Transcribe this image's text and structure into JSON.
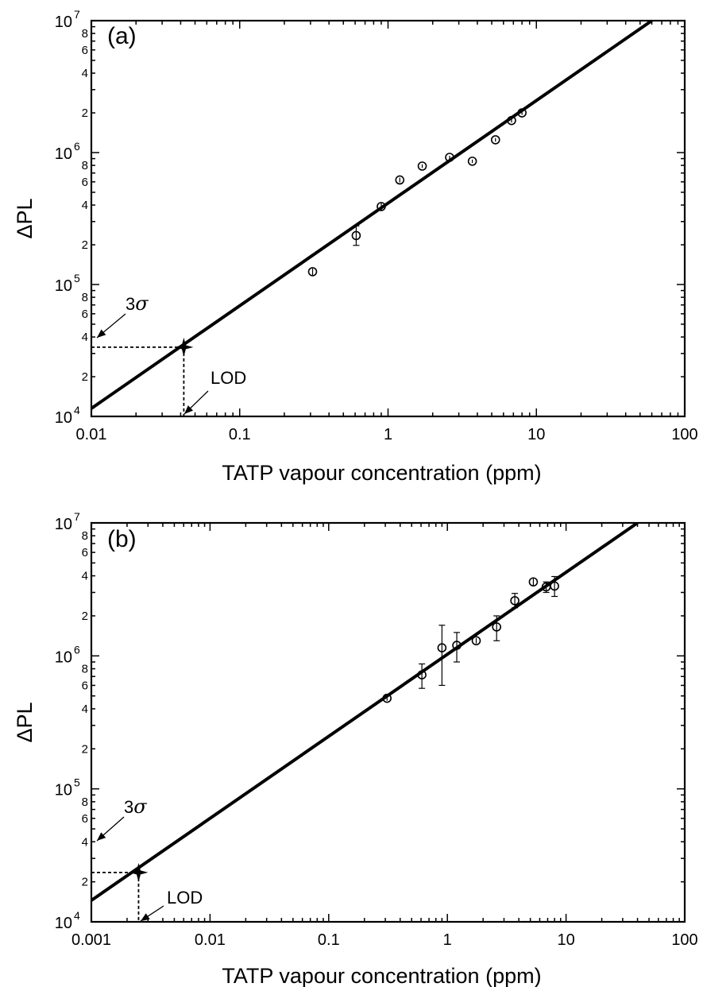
{
  "chart_data": [
    {
      "type": "scatter",
      "panel_label": "(a)",
      "xlabel": "TATP vapour concentration (ppm)",
      "ylabel": "ΔPL",
      "x_scale": "log",
      "y_scale": "log",
      "xlim": [
        0.01,
        100
      ],
      "ylim": [
        10000,
        10000000
      ],
      "x_ticks": [
        {
          "value": 0.01,
          "label": "0.01"
        },
        {
          "value": 0.1,
          "label": "0.1"
        },
        {
          "value": 1,
          "label": "1"
        },
        {
          "value": 10,
          "label": "10"
        },
        {
          "value": 100,
          "label": "100"
        }
      ],
      "y_major_ticks": [
        {
          "value": 10000,
          "base": "10",
          "exp": "4"
        },
        {
          "value": 100000,
          "base": "10",
          "exp": "5"
        },
        {
          "value": 1000000,
          "base": "10",
          "exp": "6"
        },
        {
          "value": 10000000,
          "base": "10",
          "exp": "7"
        }
      ],
      "y_minor_labels": [
        "2",
        "4",
        "6",
        "8"
      ],
      "grid": false,
      "series": [
        {
          "kind": "points_with_error_bars",
          "marker": "open circle",
          "points": [
            {
              "x": 0.31,
              "y": 125000,
              "err_low": 118000,
              "err_high": 132000
            },
            {
              "x": 0.61,
              "y": 235000,
              "err_low": 198000,
              "err_high": 278000
            },
            {
              "x": 0.9,
              "y": 390000,
              "err_low": 360000,
              "err_high": 420000
            },
            {
              "x": 1.2,
              "y": 620000,
              "err_low": 595000,
              "err_high": 645000
            },
            {
              "x": 1.7,
              "y": 790000,
              "err_low": 765000,
              "err_high": 815000
            },
            {
              "x": 2.6,
              "y": 920000,
              "err_low": 895000,
              "err_high": 945000
            },
            {
              "x": 3.7,
              "y": 860000,
              "err_low": 835000,
              "err_high": 885000
            },
            {
              "x": 5.3,
              "y": 1250000,
              "err_low": 1210000,
              "err_high": 1290000
            },
            {
              "x": 6.8,
              "y": 1750000,
              "err_low": 1690000,
              "err_high": 1810000
            },
            {
              "x": 8.0,
              "y": 2000000,
              "err_low": 1930000,
              "err_high": 2070000
            }
          ]
        },
        {
          "kind": "fit_line",
          "points": [
            {
              "x": 0.01,
              "y": 11500
            },
            {
              "x": 60,
              "y": 10000000
            }
          ]
        }
      ],
      "lod_point": {
        "x": 0.042,
        "y": 33500
      },
      "annotations": {
        "sigma_number": "3",
        "sigma_symbol": "σ",
        "lod": "LOD"
      }
    },
    {
      "type": "scatter",
      "panel_label": "(b)",
      "xlabel": "TATP vapour concentration (ppm)",
      "ylabel": "ΔPL",
      "x_scale": "log",
      "y_scale": "log",
      "xlim": [
        0.001,
        100
      ],
      "ylim": [
        10000,
        10000000
      ],
      "x_ticks": [
        {
          "value": 0.001,
          "label": "0.001"
        },
        {
          "value": 0.01,
          "label": "0.01"
        },
        {
          "value": 0.1,
          "label": "0.1"
        },
        {
          "value": 1,
          "label": "1"
        },
        {
          "value": 10,
          "label": "10"
        },
        {
          "value": 100,
          "label": "100"
        }
      ],
      "y_major_ticks": [
        {
          "value": 10000,
          "base": "10",
          "exp": "4"
        },
        {
          "value": 100000,
          "base": "10",
          "exp": "5"
        },
        {
          "value": 1000000,
          "base": "10",
          "exp": "6"
        },
        {
          "value": 10000000,
          "base": "10",
          "exp": "7"
        }
      ],
      "y_minor_labels": [
        "2",
        "4",
        "6",
        "8"
      ],
      "grid": false,
      "series": [
        {
          "kind": "points_with_error_bars",
          "marker": "open circle",
          "points": [
            {
              "x": 0.31,
              "y": 480000,
              "err_low": 460000,
              "err_high": 500000
            },
            {
              "x": 0.61,
              "y": 720000,
              "err_low": 570000,
              "err_high": 870000
            },
            {
              "x": 0.9,
              "y": 1150000,
              "err_low": 600000,
              "err_high": 1700000
            },
            {
              "x": 1.2,
              "y": 1200000,
              "err_low": 900000,
              "err_high": 1500000
            },
            {
              "x": 1.75,
              "y": 1300000,
              "err_low": 1240000,
              "err_high": 1360000
            },
            {
              "x": 2.6,
              "y": 1650000,
              "err_low": 1300000,
              "err_high": 2000000
            },
            {
              "x": 3.7,
              "y": 2600000,
              "err_low": 2300000,
              "err_high": 2950000
            },
            {
              "x": 5.3,
              "y": 3600000,
              "err_low": 3350000,
              "err_high": 3850000
            },
            {
              "x": 6.8,
              "y": 3300000,
              "err_low": 3000000,
              "err_high": 3600000
            },
            {
              "x": 8.0,
              "y": 3350000,
              "err_low": 2800000,
              "err_high": 3950000
            }
          ]
        },
        {
          "kind": "fit_line",
          "points": [
            {
              "x": 0.001,
              "y": 14500
            },
            {
              "x": 40,
              "y": 10000000
            }
          ]
        }
      ],
      "lod_point": {
        "x": 0.0025,
        "y": 23500
      },
      "annotations": {
        "sigma_number": "3",
        "sigma_symbol": "σ",
        "lod": "LOD"
      }
    }
  ]
}
